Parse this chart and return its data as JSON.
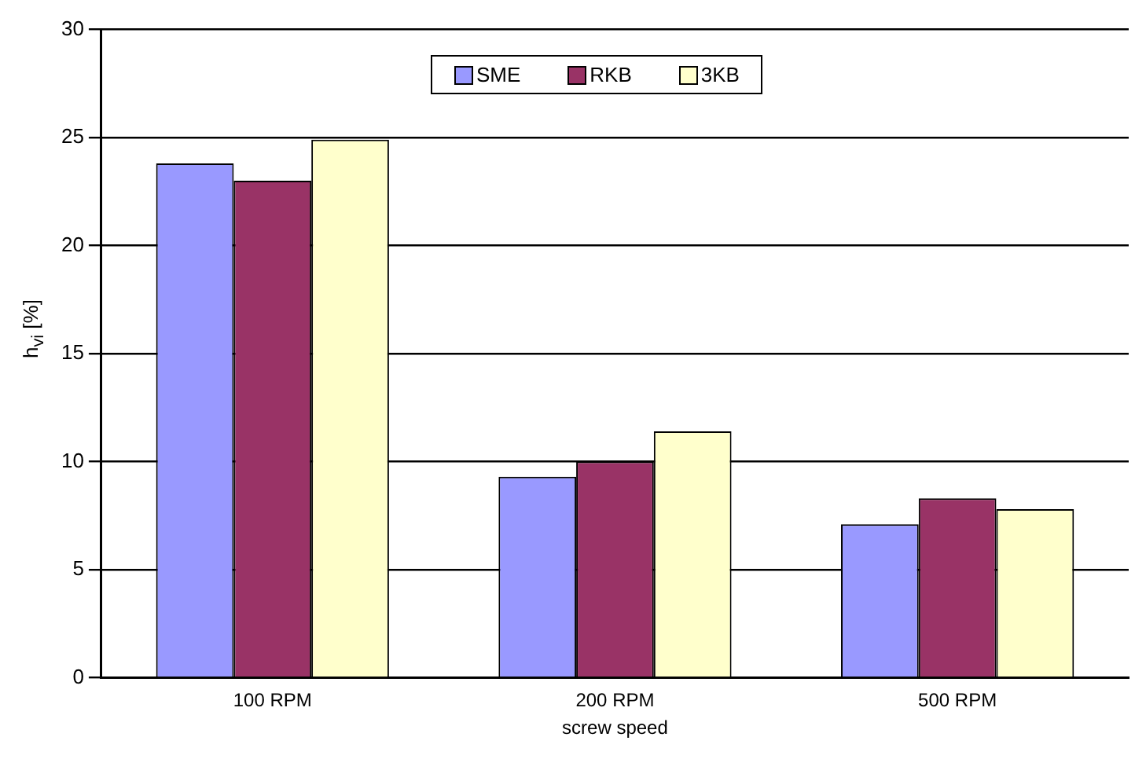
{
  "chart_data": {
    "type": "bar",
    "xlabel": "screw speed",
    "ylabel": "h$_{vi}$ [%]",
    "categories": [
      "100 RPM",
      "200 RPM",
      "500 RPM"
    ],
    "series": [
      {
        "name": "SME",
        "color": "#9999ff",
        "values": [
          23.8,
          9.3,
          7.1
        ]
      },
      {
        "name": "RKB",
        "color": "#993366",
        "values": [
          23.0,
          10.0,
          8.3
        ]
      },
      {
        "name": "3KB",
        "color": "#ffffcc",
        "values": [
          24.9,
          11.4,
          7.8
        ]
      }
    ],
    "ylim": [
      0,
      30
    ],
    "yticks": [
      0,
      5,
      10,
      15,
      20,
      25,
      30
    ],
    "grid": "y",
    "legend": "top"
  }
}
